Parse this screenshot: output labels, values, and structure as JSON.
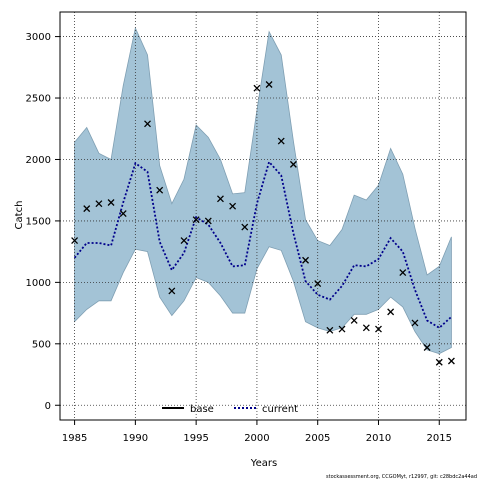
{
  "chart_data": {
    "type": "line",
    "xlabel": "Years",
    "ylabel": "Catch",
    "xlim": [
      1983.8,
      2017.2
    ],
    "ylim": [
      -120,
      3200
    ],
    "xticks": [
      1985,
      1990,
      1995,
      2000,
      2005,
      2010,
      2015
    ],
    "yticks": [
      0,
      500,
      1000,
      1500,
      2000,
      2500,
      3000
    ],
    "grid": true,
    "legend_position": "bottom-center",
    "legend": [
      {
        "label": "base",
        "style": "solid",
        "color": "#000000"
      },
      {
        "label": "current",
        "style": "dotted",
        "color": "#00008b"
      }
    ],
    "band_color": "#a3c3d6",
    "x": [
      1985,
      1986,
      1987,
      1988,
      1989,
      1990,
      1991,
      1992,
      1993,
      1994,
      1995,
      1996,
      1997,
      1998,
      1999,
      2000,
      2001,
      2002,
      2003,
      2004,
      2005,
      2006,
      2007,
      2008,
      2009,
      2010,
      2011,
      2012,
      2013,
      2014,
      2015,
      2016
    ],
    "series": [
      {
        "name": "current",
        "values": [
          1200,
          1320,
          1320,
          1300,
          1650,
          1970,
          1900,
          1330,
          1100,
          1240,
          1530,
          1470,
          1320,
          1130,
          1140,
          1640,
          1980,
          1870,
          1400,
          1010,
          900,
          860,
          970,
          1140,
          1130,
          1190,
          1360,
          1250,
          940,
          690,
          630,
          720
        ]
      }
    ],
    "band": {
      "upper": [
        2140,
        2260,
        2050,
        2000,
        2600,
        3070,
        2850,
        1950,
        1640,
        1840,
        2280,
        2180,
        2000,
        1720,
        1730,
        2400,
        3040,
        2850,
        2150,
        1510,
        1340,
        1300,
        1430,
        1710,
        1670,
        1790,
        2090,
        1880,
        1440,
        1060,
        1130,
        1370
      ],
      "lower": [
        680,
        780,
        850,
        850,
        1080,
        1270,
        1250,
        880,
        730,
        850,
        1040,
        1000,
        890,
        750,
        750,
        1110,
        1290,
        1260,
        1010,
        680,
        630,
        600,
        630,
        740,
        740,
        780,
        880,
        800,
        600,
        450,
        420,
        470
      ]
    },
    "points": {
      "marker": "x",
      "values": [
        1340,
        1600,
        1640,
        1650,
        1560,
        null,
        2290,
        1750,
        930,
        1340,
        1510,
        1500,
        1680,
        1620,
        1450,
        2580,
        2610,
        2150,
        1960,
        1180,
        990,
        610,
        620,
        690,
        630,
        620,
        760,
        1080,
        670,
        470,
        350,
        360
      ]
    }
  },
  "footer": "stockassessment.org, CCGOMyt, r12997, git: c28bdc2a44ad"
}
